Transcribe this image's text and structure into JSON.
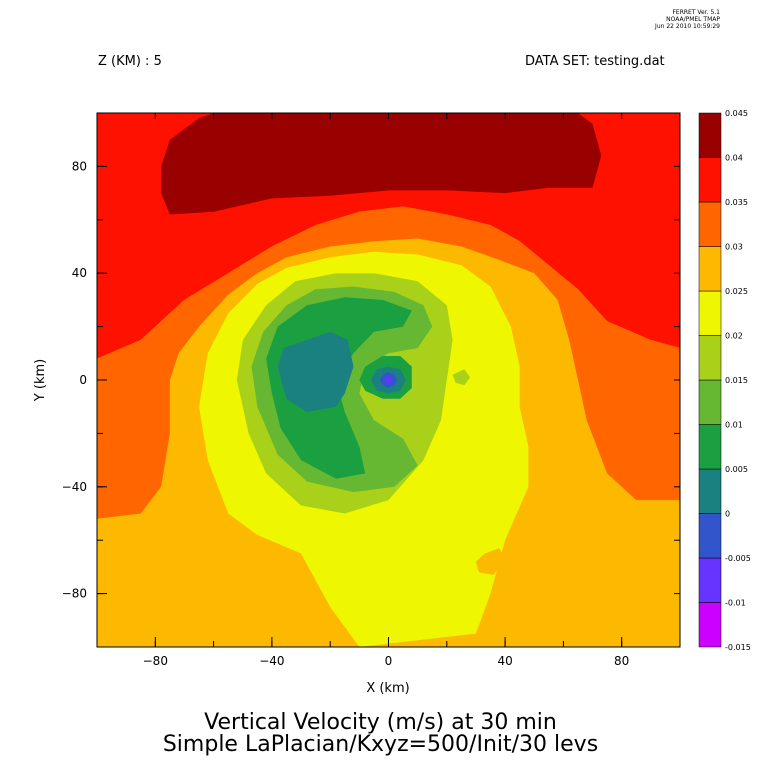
{
  "header": {
    "version": "FERRET Ver. 5.1",
    "org": "NOAA/PMEL TMAP",
    "date": "Jun 22 2010 10:59:29"
  },
  "z_label": "Z (KM) : 5",
  "dataset_label": "DATA SET: testing.dat",
  "chart_data": {
    "type": "heatmap",
    "title": "Vertical Velocity (m/s) at 30 min",
    "subtitle": "Simple LaPlacian/Kxyz=500/Init/30 levs",
    "xlabel": "X (km)",
    "ylabel": "Y (km)",
    "xlim": [
      -100,
      100
    ],
    "ylim": [
      -100,
      100
    ],
    "x_ticks": [
      -80,
      -40,
      0,
      40,
      80
    ],
    "y_ticks": [
      -80,
      -40,
      0,
      40,
      80
    ],
    "x_tick_labels": [
      "−80",
      "−40",
      "0",
      "40",
      "80"
    ],
    "y_tick_labels": [
      "−80",
      "−40",
      "0",
      "40",
      "80"
    ],
    "colorbar": {
      "levels": [
        -0.015,
        -0.01,
        -0.005,
        0,
        0.005,
        0.01,
        0.015,
        0.02,
        0.025,
        0.03,
        0.035,
        0.04,
        0.045
      ],
      "level_labels": [
        "-0.015",
        "-0.01",
        "-0.005",
        "0",
        "0.005",
        "0.01",
        "0.015",
        "0.02",
        "0.025",
        "0.03",
        "0.035",
        "0.04",
        "0.045"
      ],
      "colors": [
        "#cc00ff",
        "#6633ff",
        "#3355cc",
        "#1a8080",
        "#1aa040",
        "#66b833",
        "#aad11a",
        "#eef700",
        "#fdb800",
        "#ff6600",
        "#ff1100",
        "#990000"
      ]
    },
    "regions": [
      {
        "level": 0.035,
        "points": [
          [
            -100,
            100
          ],
          [
            100,
            100
          ],
          [
            100,
            12
          ],
          [
            90,
            15
          ],
          [
            75,
            22
          ],
          [
            65,
            34
          ],
          [
            55,
            43
          ],
          [
            45,
            52
          ],
          [
            35,
            58
          ],
          [
            20,
            62
          ],
          [
            5,
            65
          ],
          [
            -10,
            63
          ],
          [
            -25,
            58
          ],
          [
            -40,
            50
          ],
          [
            -55,
            40
          ],
          [
            -70,
            30
          ],
          [
            -85,
            15
          ],
          [
            -100,
            8
          ]
        ]
      },
      {
        "level": 0.04,
        "points": [
          [
            -78,
            80
          ],
          [
            -75,
            90
          ],
          [
            -65,
            98
          ],
          [
            -60,
            100
          ],
          [
            65,
            100
          ],
          [
            70,
            96
          ],
          [
            73,
            84
          ],
          [
            70,
            72
          ],
          [
            55,
            72
          ],
          [
            40,
            70
          ],
          [
            20,
            71
          ],
          [
            0,
            71
          ],
          [
            -20,
            69
          ],
          [
            -40,
            68
          ],
          [
            -60,
            63
          ],
          [
            -75,
            62
          ],
          [
            -78,
            70
          ]
        ]
      },
      {
        "level": 0.03,
        "points": [
          [
            -100,
            8
          ],
          [
            -85,
            15
          ],
          [
            -70,
            30
          ],
          [
            -55,
            40
          ],
          [
            -40,
            50
          ],
          [
            -25,
            58
          ],
          [
            -10,
            63
          ],
          [
            5,
            65
          ],
          [
            20,
            62
          ],
          [
            35,
            58
          ],
          [
            45,
            52
          ],
          [
            55,
            43
          ],
          [
            65,
            34
          ],
          [
            75,
            22
          ],
          [
            90,
            15
          ],
          [
            100,
            12
          ],
          [
            100,
            -100
          ],
          [
            -100,
            -100
          ]
        ]
      },
      {
        "level": 0.025,
        "points": [
          [
            -100,
            -52
          ],
          [
            -85,
            -50
          ],
          [
            -78,
            -40
          ],
          [
            -75,
            -20
          ],
          [
            -75,
            0
          ],
          [
            -72,
            10
          ],
          [
            -65,
            20
          ],
          [
            -55,
            32
          ],
          [
            -45,
            40
          ],
          [
            -35,
            46
          ],
          [
            -20,
            50
          ],
          [
            -5,
            52
          ],
          [
            10,
            53
          ],
          [
            25,
            50
          ],
          [
            38,
            45
          ],
          [
            50,
            40
          ],
          [
            58,
            30
          ],
          [
            62,
            15
          ],
          [
            65,
            0
          ],
          [
            68,
            -15
          ],
          [
            75,
            -35
          ],
          [
            85,
            -45
          ],
          [
            100,
            -45
          ],
          [
            100,
            -100
          ],
          [
            -100,
            -100
          ]
        ]
      },
      {
        "level": 0.02,
        "points": [
          [
            -55,
            -50
          ],
          [
            -62,
            -30
          ],
          [
            -65,
            -10
          ],
          [
            -62,
            10
          ],
          [
            -55,
            25
          ],
          [
            -45,
            36
          ],
          [
            -35,
            42
          ],
          [
            -20,
            46
          ],
          [
            -5,
            48
          ],
          [
            10,
            47
          ],
          [
            25,
            43
          ],
          [
            35,
            35
          ],
          [
            42,
            20
          ],
          [
            45,
            5
          ],
          [
            45,
            -10
          ],
          [
            48,
            -25
          ],
          [
            48,
            -40
          ],
          [
            40,
            -60
          ],
          [
            35,
            -80
          ],
          [
            30,
            -95
          ],
          [
            -10,
            -100
          ],
          [
            -20,
            -85
          ],
          [
            -30,
            -65
          ],
          [
            -45,
            -58
          ]
        ]
      },
      {
        "level": 0.015,
        "points": [
          [
            -48,
            -20
          ],
          [
            -52,
            0
          ],
          [
            -50,
            15
          ],
          [
            -42,
            28
          ],
          [
            -32,
            37
          ],
          [
            -18,
            40
          ],
          [
            -5,
            40
          ],
          [
            10,
            37
          ],
          [
            20,
            28
          ],
          [
            22,
            15
          ],
          [
            20,
            0
          ],
          [
            18,
            -15
          ],
          [
            12,
            -30
          ],
          [
            0,
            -45
          ],
          [
            -15,
            -50
          ],
          [
            -30,
            -47
          ],
          [
            -42,
            -35
          ]
        ]
      },
      {
        "level": 0.01,
        "points": [
          [
            -45,
            -10
          ],
          [
            -47,
            5
          ],
          [
            -43,
            18
          ],
          [
            -35,
            28
          ],
          [
            -25,
            34
          ],
          [
            -12,
            35
          ],
          [
            2,
            33
          ],
          [
            12,
            28
          ],
          [
            15,
            20
          ],
          [
            10,
            12
          ],
          [
            0,
            10
          ],
          [
            -8,
            5
          ],
          [
            -10,
            -5
          ],
          [
            -5,
            -15
          ],
          [
            5,
            -22
          ],
          [
            10,
            -32
          ],
          [
            2,
            -40
          ],
          [
            -12,
            -42
          ],
          [
            -28,
            -38
          ],
          [
            -38,
            -28
          ]
        ]
      },
      {
        "level": 0.005,
        "points": [
          [
            -40,
            -5
          ],
          [
            -42,
            8
          ],
          [
            -38,
            20
          ],
          [
            -28,
            28
          ],
          [
            -15,
            31
          ],
          [
            -2,
            30
          ],
          [
            8,
            26
          ],
          [
            5,
            20
          ],
          [
            -5,
            18
          ],
          [
            -12,
            10
          ],
          [
            -18,
            0
          ],
          [
            -15,
            -12
          ],
          [
            -10,
            -25
          ],
          [
            -8,
            -35
          ],
          [
            -18,
            -37
          ],
          [
            -30,
            -30
          ],
          [
            -37,
            -18
          ]
        ]
      },
      {
        "level": 0.0,
        "points": [
          [
            -38,
            5
          ],
          [
            -36,
            12
          ],
          [
            -28,
            15
          ],
          [
            -20,
            18
          ],
          [
            -14,
            15
          ],
          [
            -12,
            5
          ],
          [
            -15,
            -5
          ],
          [
            -18,
            -10
          ],
          [
            -28,
            -12
          ],
          [
            -35,
            -7
          ]
        ]
      },
      {
        "level": 0.005,
        "points": [
          [
            -10,
            0
          ],
          [
            -8,
            5
          ],
          [
            -2,
            9
          ],
          [
            4,
            9
          ],
          [
            8,
            5
          ],
          [
            8,
            -3
          ],
          [
            4,
            -7
          ],
          [
            -2,
            -7
          ],
          [
            -8,
            -4
          ]
        ]
      },
      {
        "level": 0.0,
        "points": [
          [
            -6,
            0
          ],
          [
            -4,
            4
          ],
          [
            0,
            5
          ],
          [
            4,
            4
          ],
          [
            6,
            0
          ],
          [
            4,
            -4
          ],
          [
            0,
            -5
          ],
          [
            -4,
            -4
          ]
        ]
      },
      {
        "level": -0.005,
        "points": [
          [
            -3,
            0
          ],
          [
            -2,
            2
          ],
          [
            0,
            3
          ],
          [
            2,
            2
          ],
          [
            3,
            0
          ],
          [
            2,
            -2
          ],
          [
            0,
            -3
          ],
          [
            -2,
            -2
          ]
        ]
      },
      {
        "level": -0.01,
        "points": [
          [
            -1.5,
            0
          ],
          [
            0,
            1.5
          ],
          [
            1.5,
            0
          ],
          [
            0,
            -1.5
          ]
        ]
      },
      {
        "level": 0.015,
        "points": [
          [
            22,
            2
          ],
          [
            26,
            4
          ],
          [
            28,
            1
          ],
          [
            26,
            -2
          ],
          [
            23,
            -1
          ]
        ]
      },
      {
        "level": 0.025,
        "points": [
          [
            30,
            -68
          ],
          [
            33,
            -65
          ],
          [
            38,
            -63
          ],
          [
            40,
            -67
          ],
          [
            36,
            -73
          ],
          [
            31,
            -72
          ]
        ]
      }
    ]
  }
}
